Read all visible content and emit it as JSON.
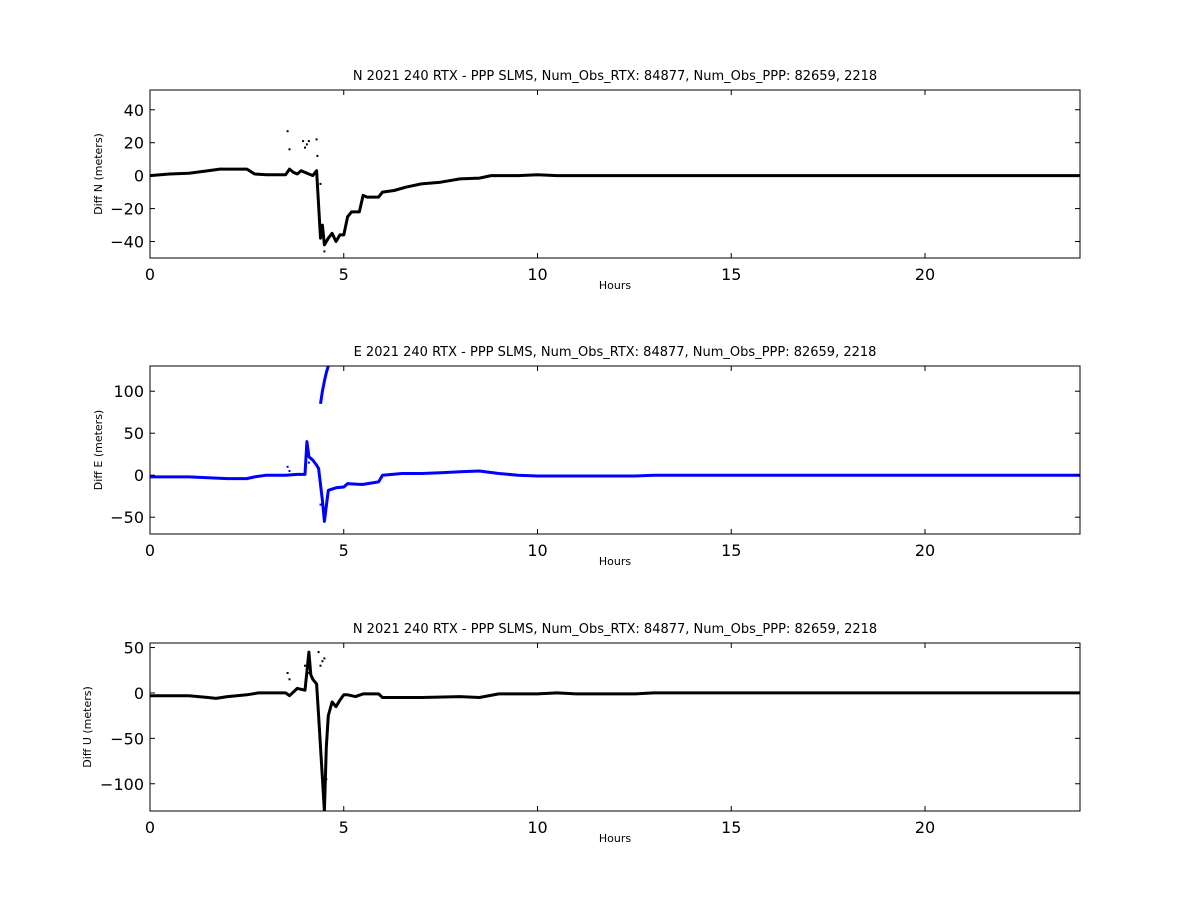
{
  "chart_data": [
    {
      "type": "scatter",
      "title": "N 2021 240 RTX - PPP  SLMS, Num_Obs_RTX: 84877, Num_Obs_PPP: 82659, 2218",
      "xlabel": "Hours",
      "ylabel": "Diff N (meters)",
      "xlim": [
        0,
        24
      ],
      "ylim": [
        -50,
        52
      ],
      "xticks": [
        "0",
        "5",
        "10",
        "15",
        "20"
      ],
      "xtick_values": [
        0,
        5,
        10,
        15,
        20
      ],
      "yticks": [
        "40",
        "20",
        "0",
        "−20",
        "−40"
      ],
      "ytick_values": [
        40,
        20,
        0,
        -20,
        -40
      ],
      "color": "#000000",
      "grid": false,
      "series": [
        {
          "x": [
            0,
            0.5,
            1.0,
            1.5,
            1.8,
            2.0,
            2.5,
            2.7,
            3.0,
            3.3,
            3.5,
            3.6,
            3.7,
            3.8,
            3.9,
            4.0,
            4.1,
            4.2,
            4.3,
            4.4,
            4.45,
            4.5,
            4.6,
            4.7,
            4.8,
            4.9,
            5.0,
            5.1,
            5.2,
            5.4,
            5.5,
            5.6,
            5.9,
            6.0,
            6.3,
            6.6,
            7.0,
            7.5,
            8.0,
            8.5,
            8.8,
            9.5,
            10.0,
            10.5,
            11.0,
            11.6,
            11.7,
            13.0,
            14.0,
            15.0,
            16.0,
            17.0,
            17.8,
            17.9,
            18.8,
            18.9,
            20.0,
            21.0,
            22.3,
            22.4,
            23.0,
            24.0
          ],
          "y": [
            0,
            1,
            1.5,
            3,
            4,
            4,
            4,
            1,
            0.5,
            0.5,
            0.5,
            4,
            2,
            1,
            3,
            2,
            1,
            0,
            3,
            -38,
            -30,
            -42,
            -38,
            -35,
            -40,
            -36,
            -36,
            -25,
            -22,
            -22,
            -12,
            -13,
            -13,
            -10,
            -9,
            -7,
            -5,
            -4,
            -2,
            -1.5,
            0,
            0,
            0.5,
            0,
            0,
            0,
            0,
            0,
            0,
            0,
            0,
            0,
            0,
            0,
            0,
            0,
            0,
            0,
            0,
            0,
            0,
            0
          ]
        },
        {
          "x": [
            3.55,
            3.6,
            3.95,
            4.0,
            4.05,
            4.1,
            4.3,
            4.32,
            4.35,
            4.4,
            4.5
          ],
          "y": [
            27,
            16,
            21,
            17,
            19,
            21,
            22,
            12,
            -16,
            -5,
            -46
          ]
        }
      ]
    },
    {
      "type": "scatter",
      "title": "E 2021 240 RTX - PPP  SLMS, Num_Obs_RTX: 84877, Num_Obs_PPP: 82659, 2218",
      "xlabel": "Hours",
      "ylabel": "Diff E (meters)",
      "xlim": [
        0,
        24
      ],
      "ylim": [
        -70,
        130
      ],
      "xticks": [
        "0",
        "5",
        "10",
        "15",
        "20"
      ],
      "xtick_values": [
        0,
        5,
        10,
        15,
        20
      ],
      "yticks": [
        "100",
        "50",
        "0",
        "−50"
      ],
      "ytick_values": [
        100,
        50,
        0,
        -50
      ],
      "color": "#0000ff",
      "grid": false,
      "series": [
        {
          "x": [
            0,
            0.5,
            1.0,
            1.5,
            2.0,
            2.5,
            2.7,
            3.0,
            3.5,
            3.8,
            4.0,
            4.05,
            4.1,
            4.2,
            4.3,
            4.35,
            4.45,
            4.5,
            4.6,
            4.8,
            5.0,
            5.1,
            5.4,
            5.5,
            5.9,
            6.0,
            6.5,
            7.0,
            7.5,
            8.0,
            8.5,
            9.0,
            9.5,
            10.0,
            11.0,
            11.6,
            11.7,
            12.5,
            13.0,
            15.0,
            17.0,
            17.8,
            17.9,
            18.8,
            18.9,
            20.0,
            22.3,
            22.4,
            24.0
          ],
          "y": [
            -2,
            -2,
            -2,
            -3,
            -4,
            -4,
            -2,
            0,
            0,
            1,
            1,
            40,
            22,
            18,
            12,
            8,
            -30,
            -55,
            -18,
            -15,
            -14,
            -10,
            -11,
            -11,
            -8,
            0,
            2,
            2,
            3,
            4,
            5,
            2,
            0,
            -1,
            -1,
            -1,
            -1,
            -1,
            0,
            0,
            0,
            0,
            0,
            0,
            0,
            0,
            0,
            0,
            0
          ]
        },
        {
          "x": [
            4.4,
            4.45,
            4.5,
            4.55,
            4.6
          ],
          "y": [
            85,
            100,
            112,
            122,
            130
          ]
        },
        {
          "x": [
            3.55,
            3.6,
            4.1,
            4.4,
            4.5
          ],
          "y": [
            10,
            5,
            15,
            -35,
            -45
          ]
        }
      ]
    },
    {
      "type": "scatter",
      "title": "N 2021 240 RTX - PPP  SLMS, Num_Obs_RTX: 84877, Num_Obs_PPP: 82659, 2218",
      "xlabel": "Hours",
      "ylabel": "Diff U (meters)",
      "xlim": [
        0,
        24
      ],
      "ylim": [
        -130,
        55
      ],
      "xticks": [
        "0",
        "5",
        "10",
        "15",
        "20"
      ],
      "xtick_values": [
        0,
        5,
        10,
        15,
        20
      ],
      "yticks": [
        "50",
        "0",
        "−50",
        "−100"
      ],
      "ytick_values": [
        50,
        0,
        -50,
        -100
      ],
      "color": "#000000",
      "grid": false,
      "series": [
        {
          "x": [
            0,
            0.5,
            1.0,
            1.5,
            1.7,
            2.0,
            2.5,
            2.8,
            3.0,
            3.5,
            3.6,
            3.8,
            4.0,
            4.1,
            4.15,
            4.2,
            4.3,
            4.35,
            4.5,
            4.55,
            4.6,
            4.7,
            4.8,
            4.9,
            5.0,
            5.1,
            5.3,
            5.5,
            5.9,
            6.0,
            7.0,
            8.0,
            8.5,
            9.0,
            10.0,
            10.5,
            11.0,
            11.6,
            11.7,
            12.5,
            13.0,
            15.0,
            17.0,
            17.8,
            17.9,
            18.8,
            18.9,
            20.0,
            22.3,
            22.4,
            24.0
          ],
          "y": [
            -3,
            -3,
            -3,
            -5,
            -6,
            -4,
            -2,
            0,
            0,
            0,
            -3,
            5,
            3,
            45,
            20,
            15,
            10,
            -25,
            -130,
            -60,
            -25,
            -10,
            -15,
            -8,
            -2,
            -2,
            -4,
            -1,
            -1,
            -5,
            -5,
            -4,
            -5,
            -1,
            -1,
            0,
            -1,
            -1,
            -1,
            -1,
            0,
            0,
            0,
            0,
            0,
            0,
            0,
            0,
            0,
            0,
            0
          ]
        },
        {
          "x": [
            3.55,
            3.6,
            4.0,
            4.05,
            4.1,
            4.35,
            4.4,
            4.45,
            4.5,
            4.55
          ],
          "y": [
            22,
            15,
            30,
            25,
            22,
            45,
            30,
            35,
            38,
            -95
          ]
        }
      ]
    }
  ]
}
